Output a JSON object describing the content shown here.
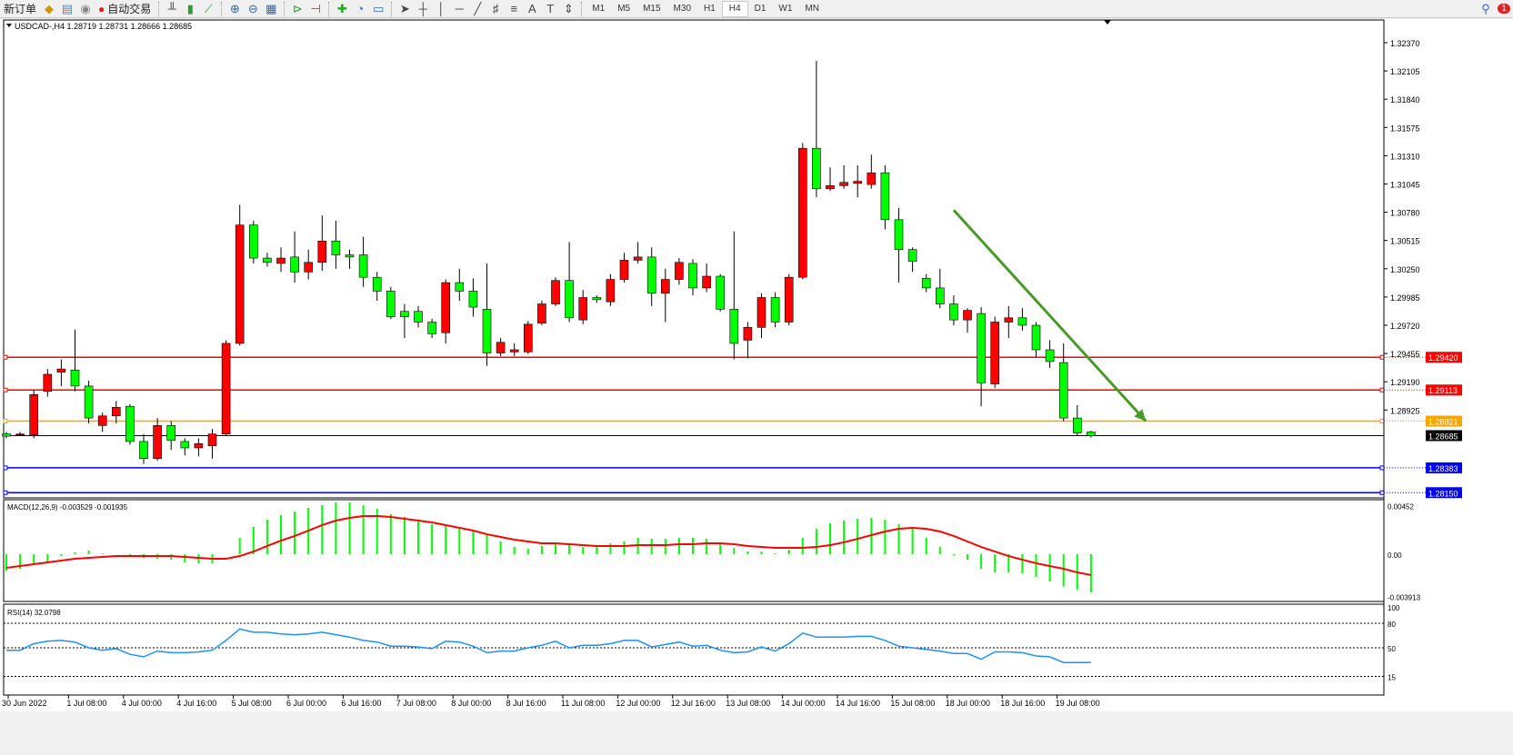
{
  "toolbar": {
    "new_order": "新订单",
    "auto_trading": "自动交易",
    "timeframes": [
      "M1",
      "M5",
      "M15",
      "M30",
      "H1",
      "H4",
      "D1",
      "W1",
      "MN"
    ],
    "active_timeframe": "H4",
    "notification_count": "1"
  },
  "chart": {
    "header": "USDCAD-,H4  1.28719 1.28731 1.28666 1.28685",
    "bull_color": "#ff0000",
    "bear_color": "#00ff00",
    "price_ticks": [
      "1.32370",
      "1.32105",
      "1.31840",
      "1.31575",
      "1.31310",
      "1.31045",
      "1.30780",
      "1.30515",
      "1.30250",
      "1.29985",
      "1.29720",
      "1.29455",
      "1.29190",
      "1.28925"
    ],
    "current_price": "1.28685",
    "hlines": [
      {
        "price": "1.29420",
        "color": "#ff0000"
      },
      {
        "price": "1.29113",
        "color": "#ff0000"
      },
      {
        "price": "1.28821",
        "color": "#ffa500"
      },
      {
        "price": "1.28383",
        "color": "#0000ff"
      },
      {
        "price": "1.28150",
        "color": "#0000ff"
      }
    ],
    "trend_arrow": {
      "color": "#4a9a2a",
      "from": {
        "candle": 69,
        "price": 1.308
      },
      "to": {
        "candle": 83,
        "price": 1.2882
      }
    },
    "date_labels": [
      "30 Jun 2022",
      "1 Jul 08:00",
      "4 Jul 00:00",
      "4 Jul 16:00",
      "5 Jul 08:00",
      "6 Jul 00:00",
      "6 Jul 16:00",
      "7 Jul 08:00",
      "8 Jul 00:00",
      "8 Jul 16:00",
      "11 Jul 08:00",
      "12 Jul 00:00",
      "12 Jul 16:00",
      "13 Jul 08:00",
      "14 Jul 00:00",
      "14 Jul 16:00",
      "15 Jul 08:00",
      "18 Jul 00:00",
      "18 Jul 16:00",
      "19 Jul 08:00"
    ],
    "ohlc": [
      [
        1.287,
        1.2872,
        1.2866,
        1.2868
      ],
      [
        1.287,
        1.2872,
        1.2868,
        1.287
      ],
      [
        1.2869,
        1.2911,
        1.2866,
        1.2907
      ],
      [
        1.291,
        1.2931,
        1.2905,
        1.2926
      ],
      [
        1.2928,
        1.294,
        1.2915,
        1.2931
      ],
      [
        1.293,
        1.2968,
        1.291,
        1.2915
      ],
      [
        1.2915,
        1.292,
        1.288,
        1.2885
      ],
      [
        1.2878,
        1.289,
        1.2872,
        1.2887
      ],
      [
        1.2887,
        1.2901,
        1.288,
        1.2895
      ],
      [
        1.2896,
        1.2898,
        1.286,
        1.2863
      ],
      [
        1.2863,
        1.287,
        1.2842,
        1.2847
      ],
      [
        1.2847,
        1.2885,
        1.2845,
        1.2878
      ],
      [
        1.2878,
        1.2882,
        1.2855,
        1.2864
      ],
      [
        1.2863,
        1.2866,
        1.285,
        1.2857
      ],
      [
        1.2857,
        1.2866,
        1.2849,
        1.2861
      ],
      [
        1.2859,
        1.2875,
        1.2847,
        1.287
      ],
      [
        1.287,
        1.2958,
        1.2868,
        1.2955
      ],
      [
        1.2955,
        1.3085,
        1.2953,
        1.3066
      ],
      [
        1.3066,
        1.307,
        1.303,
        1.3035
      ],
      [
        1.3035,
        1.304,
        1.3027,
        1.3031
      ],
      [
        1.303,
        1.3045,
        1.3022,
        1.3035
      ],
      [
        1.3036,
        1.306,
        1.3012,
        1.3022
      ],
      [
        1.3022,
        1.3043,
        1.3015,
        1.3031
      ],
      [
        1.3031,
        1.3075,
        1.3023,
        1.3051
      ],
      [
        1.3051,
        1.307,
        1.3025,
        1.3038
      ],
      [
        1.3038,
        1.3043,
        1.3025,
        1.3036
      ],
      [
        1.3038,
        1.3055,
        1.3008,
        1.3017
      ],
      [
        1.3017,
        1.3022,
        1.2995,
        1.3004
      ],
      [
        1.3004,
        1.3008,
        1.2978,
        1.298
      ],
      [
        1.2985,
        1.2992,
        1.296,
        1.298
      ],
      [
        1.2985,
        1.299,
        1.297,
        1.2975
      ],
      [
        1.2975,
        1.2978,
        1.296,
        1.2964
      ],
      [
        1.2965,
        1.3015,
        1.2955,
        1.3012
      ],
      [
        1.3012,
        1.3025,
        1.2995,
        1.3004
      ],
      [
        1.3004,
        1.3016,
        1.298,
        1.2989
      ],
      [
        1.2987,
        1.303,
        1.2934,
        1.2946
      ],
      [
        1.2946,
        1.296,
        1.2943,
        1.2956
      ],
      [
        1.2947,
        1.2955,
        1.2943,
        1.2949
      ],
      [
        1.2947,
        1.2976,
        1.2945,
        1.2973
      ],
      [
        1.2974,
        1.2995,
        1.2972,
        1.2992
      ],
      [
        1.2992,
        1.3017,
        1.299,
        1.3014
      ],
      [
        1.3014,
        1.305,
        1.2975,
        1.2979
      ],
      [
        1.2977,
        1.3005,
        1.2973,
        1.2998
      ],
      [
        1.2998,
        1.3,
        1.2993,
        1.2996
      ],
      [
        1.2994,
        1.302,
        1.299,
        1.3015
      ],
      [
        1.3015,
        1.304,
        1.3012,
        1.3033
      ],
      [
        1.3033,
        1.305,
        1.303,
        1.3036
      ],
      [
        1.3036,
        1.3045,
        1.299,
        1.3002
      ],
      [
        1.3002,
        1.3025,
        1.2975,
        1.3015
      ],
      [
        1.3015,
        1.3035,
        1.301,
        1.3031
      ],
      [
        1.303,
        1.3034,
        1.3,
        1.3007
      ],
      [
        1.3007,
        1.303,
        1.3003,
        1.3018
      ],
      [
        1.3018,
        1.302,
        1.2985,
        1.2987
      ],
      [
        1.2987,
        1.306,
        1.294,
        1.2955
      ],
      [
        1.2958,
        1.2975,
        1.2941,
        1.297
      ],
      [
        1.297,
        1.3002,
        1.296,
        1.2998
      ],
      [
        1.2998,
        1.3003,
        1.297,
        1.2975
      ],
      [
        1.2975,
        1.302,
        1.2972,
        1.3017
      ],
      [
        1.3017,
        1.3143,
        1.3015,
        1.3138
      ],
      [
        1.3138,
        1.322,
        1.3092,
        1.31
      ],
      [
        1.31,
        1.312,
        1.3098,
        1.3103
      ],
      [
        1.3103,
        1.3122,
        1.31,
        1.3106
      ],
      [
        1.3105,
        1.3122,
        1.3092,
        1.3107
      ],
      [
        1.3104,
        1.3132,
        1.31,
        1.3115
      ],
      [
        1.3115,
        1.3122,
        1.3062,
        1.3071
      ],
      [
        1.3071,
        1.3082,
        1.3012,
        1.3043
      ],
      [
        1.3043,
        1.3045,
        1.3022,
        1.3032
      ],
      [
        1.3016,
        1.302,
        1.3003,
        1.3007
      ],
      [
        1.3007,
        1.3025,
        1.2988,
        1.2992
      ],
      [
        1.2992,
        1.3,
        1.2972,
        1.2977
      ],
      [
        1.2977,
        1.2988,
        1.2965,
        1.2986
      ],
      [
        1.2983,
        1.2989,
        1.2896,
        1.2918
      ],
      [
        1.2917,
        1.298,
        1.2913,
        1.2975
      ],
      [
        1.2975,
        1.299,
        1.296,
        1.2979
      ],
      [
        1.2979,
        1.2988,
        1.2967,
        1.2972
      ],
      [
        1.2972,
        1.2975,
        1.2942,
        1.2949
      ],
      [
        1.2949,
        1.2958,
        1.2932,
        1.2938
      ],
      [
        1.2937,
        1.2955,
        1.2882,
        1.2885
      ],
      [
        1.2885,
        1.2897,
        1.2868,
        1.2871
      ],
      [
        1.28719,
        1.28731,
        1.28666,
        1.28685
      ]
    ]
  },
  "macd": {
    "label": "MACD(12,26,9) -0.003529 -0.001935",
    "ticks": [
      "0.00452",
      "0.00",
      "-0.003913"
    ],
    "hist_color": "#00ff00",
    "signal_color": "#ff0000",
    "histogram": [
      -0.00152,
      -0.00135,
      -0.00101,
      -0.00067,
      -0.00017,
      0.00017,
      0.00034,
      8e-05,
      0,
      -8e-05,
      -0.00034,
      -0.00042,
      -0.00051,
      -0.00076,
      -0.00084,
      -0.00084,
      0,
      0.00152,
      0.00253,
      0.0032,
      0.00362,
      0.00396,
      0.0043,
      0.00455,
      0.0048,
      0.0048,
      0.00455,
      0.00422,
      0.00371,
      0.00346,
      0.00303,
      0.00278,
      0.0027,
      0.00253,
      0.00219,
      0.00177,
      0.00118,
      0.00067,
      0.00051,
      0.00076,
      0.0011,
      0.00101,
      0.00067,
      0.00084,
      0.00101,
      0.00118,
      0.00152,
      0.00143,
      0.00143,
      0.00152,
      0.00152,
      0.00143,
      0.0011,
      0.00059,
      0.00025,
      0.00025,
      8e-05,
      0.00042,
      0.00152,
      0.00236,
      0.00287,
      0.00312,
      0.00329,
      0.00337,
      0.0032,
      0.00278,
      0.00236,
      0.00152,
      0.00067,
      -8e-05,
      -0.00051,
      -0.00135,
      -0.00169,
      -0.00169,
      -0.00177,
      -0.00211,
      -0.00253,
      -0.003,
      -0.0033,
      -0.00353
    ],
    "signal": [
      -0.00126,
      -0.0011,
      -0.00093,
      -0.00076,
      -0.00059,
      -0.00042,
      -0.00034,
      -0.00025,
      -0.00017,
      -0.00017,
      -0.00017,
      -0.00017,
      -0.00017,
      -0.00025,
      -0.00034,
      -0.00042,
      -0.00042,
      -0.00017,
      0.00025,
      0.00076,
      0.00126,
      0.00169,
      0.00219,
      0.0027,
      0.00312,
      0.00337,
      0.00354,
      0.00354,
      0.00346,
      0.00329,
      0.00312,
      0.00295,
      0.0027,
      0.00245,
      0.00219,
      0.00185,
      0.0016,
      0.00135,
      0.00118,
      0.00101,
      0.00101,
      0.00093,
      0.00084,
      0.00076,
      0.00076,
      0.00076,
      0.00084,
      0.00084,
      0.00084,
      0.00093,
      0.00093,
      0.00101,
      0.00101,
      0.00093,
      0.00076,
      0.00067,
      0.00059,
      0.00059,
      0.00059,
      0.00067,
      0.00084,
      0.0011,
      0.00143,
      0.00177,
      0.00211,
      0.00236,
      0.00245,
      0.00236,
      0.00211,
      0.00169,
      0.00118,
      0.00067,
      0.00025,
      -0.00017,
      -0.00051,
      -0.00084,
      -0.0011,
      -0.00135,
      -0.00169,
      -0.001935
    ]
  },
  "rsi": {
    "label": "RSI(14) 32.0798",
    "ticks": [
      "100",
      "80",
      "50",
      "15"
    ],
    "color": "#1e90ff",
    "values": [
      47,
      47,
      55,
      58,
      59,
      57,
      50,
      47,
      49,
      42,
      39,
      46,
      44,
      44,
      45,
      47,
      59,
      73,
      69,
      69,
      67,
      66,
      67,
      69,
      66,
      63,
      59,
      57,
      52,
      52,
      51,
      49,
      58,
      57,
      52,
      44,
      46,
      46,
      50,
      53,
      58,
      50,
      53,
      53,
      55,
      59,
      59,
      51,
      54,
      57,
      52,
      53,
      47,
      44,
      45,
      51,
      46,
      55,
      68,
      63,
      63,
      63,
      64,
      64,
      59,
      52,
      50,
      48,
      46,
      43,
      43,
      36,
      45,
      45,
      44,
      40,
      39,
      32,
      32,
      32.08
    ]
  }
}
